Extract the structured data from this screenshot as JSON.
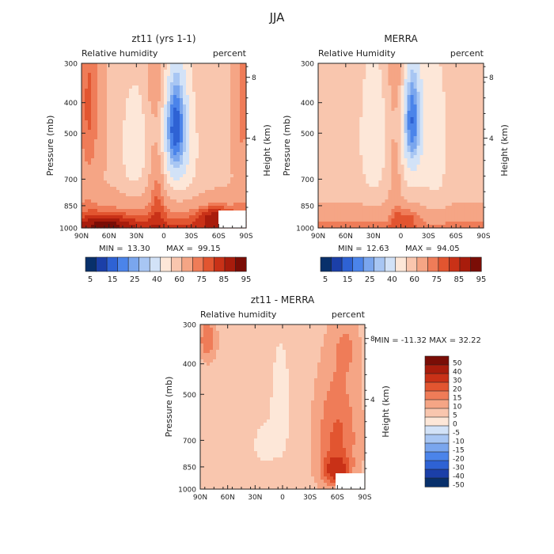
{
  "figure_title": "JJA",
  "chart_data": [
    {
      "type": "heatmap",
      "title": "zt11 (yrs 1-1)",
      "subtitle_left": "Relative humidity",
      "subtitle_right": "percent",
      "ylabel": "Pressure (mb)",
      "ylabel_right": "Height (km)",
      "x_ticklabels": [
        "90N",
        "60N",
        "30N",
        "0",
        "30S",
        "60S",
        "90S"
      ],
      "xlim": [
        90,
        -90
      ],
      "y_ticklabels": [
        "300",
        "400",
        "500",
        "700",
        "850",
        "1000"
      ],
      "y_ticks": [
        300,
        400,
        500,
        700,
        850,
        1000
      ],
      "ylim": [
        1000,
        300
      ],
      "y_scale": "log",
      "right_ticklabels": [
        "8",
        "4"
      ],
      "min_label": "MIN =",
      "min_value": "13.30",
      "max_label": "MAX =",
      "max_value": "99.15",
      "colorbar_ticklabels": [
        "5",
        "15",
        "25",
        "40",
        "60",
        "75",
        "85",
        "95"
      ]
    },
    {
      "type": "heatmap",
      "title": "MERRA",
      "subtitle_left": "Relative Humidity",
      "subtitle_right": "percent",
      "ylabel": "Pressure (mb)",
      "ylabel_right": "Height (km)",
      "x_ticklabels": [
        "90N",
        "60N",
        "30N",
        "0",
        "30S",
        "60S",
        "90S"
      ],
      "xlim": [
        90,
        -90
      ],
      "y_ticklabels": [
        "300",
        "400",
        "500",
        "700",
        "850",
        "1000"
      ],
      "y_ticks": [
        300,
        400,
        500,
        700,
        850,
        1000
      ],
      "ylim": [
        1000,
        300
      ],
      "y_scale": "log",
      "right_ticklabels": [
        "8",
        "4"
      ],
      "min_label": "MIN =",
      "min_value": "12.63",
      "max_label": "MAX =",
      "max_value": "94.05",
      "colorbar_ticklabels": [
        "5",
        "15",
        "25",
        "40",
        "60",
        "75",
        "85",
        "95"
      ]
    },
    {
      "type": "heatmap",
      "title": "zt11 - MERRA",
      "subtitle_left": "Relative humidity",
      "subtitle_right": "percent",
      "ylabel": "Pressure (mb)",
      "ylabel_right": "Height (km)",
      "x_ticklabels": [
        "90N",
        "60N",
        "30N",
        "0",
        "30S",
        "60S",
        "90S"
      ],
      "xlim": [
        90,
        -90
      ],
      "y_ticklabels": [
        "300",
        "400",
        "500",
        "700",
        "850",
        "1000"
      ],
      "y_ticks": [
        300,
        400,
        500,
        700,
        850,
        1000
      ],
      "ylim": [
        1000,
        300
      ],
      "y_scale": "log",
      "right_ticklabels": [
        "8",
        "4"
      ],
      "minmax_text": "MIN = -11.32   MAX =   32.22",
      "colorbar_ticklabels": [
        "50",
        "40",
        "30",
        "20",
        "15",
        "10",
        "5",
        "0",
        "-5",
        "-10",
        "-15",
        "-20",
        "-30",
        "-40",
        "-50"
      ]
    }
  ],
  "colors": {
    "rh_scale": [
      "#08306b",
      "#1b3fa8",
      "#2e62d4",
      "#4b84ea",
      "#7aa6ee",
      "#a8c6f3",
      "#d2e2f7",
      "#fde7d8",
      "#f9c6ae",
      "#f5a585",
      "#ef7c58",
      "#e25530",
      "#c93117",
      "#a81c0c",
      "#7a0d06"
    ],
    "diff_scale": [
      "#7a0d06",
      "#a81c0c",
      "#c93117",
      "#e25530",
      "#ef7c58",
      "#f5a585",
      "#f9c6ae",
      "#fde7d8",
      "#d2e2f7",
      "#a8c6f3",
      "#7aa6ee",
      "#4b84ea",
      "#2e62d4",
      "#1b3fa8",
      "#08306b"
    ]
  }
}
